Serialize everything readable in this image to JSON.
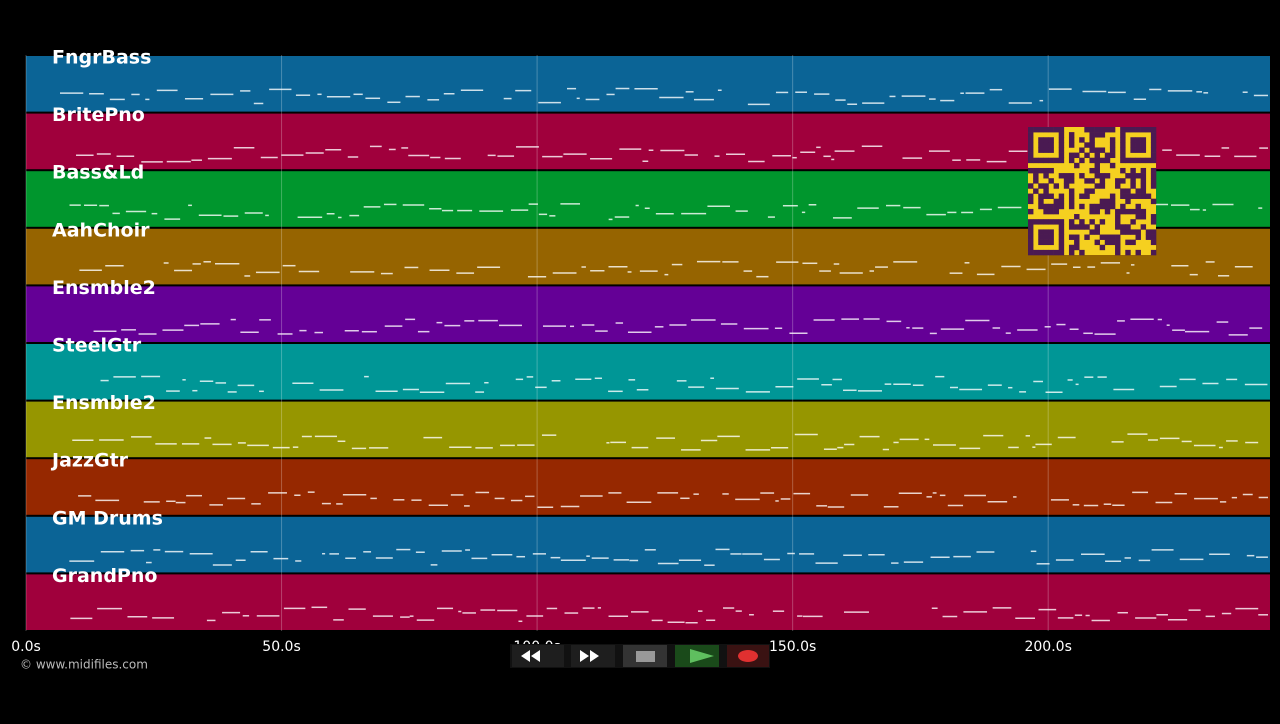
{
  "tracks": [
    {
      "name": "FngrBass",
      "color": "#0b6496"
    },
    {
      "name": "BritePno",
      "color": "#a0003c"
    },
    {
      "name": "Bass&Ld",
      "color": "#00962d"
    },
    {
      "name": "AahChoir",
      "color": "#966400"
    },
    {
      "name": "Ensmble2",
      "color": "#640096"
    },
    {
      "name": "SteelGtr",
      "color": "#009696"
    },
    {
      "name": "Ensmble2",
      "color": "#969600"
    },
    {
      "name": "JazzGtr",
      "color": "#962800"
    },
    {
      "name": "GM Drums",
      "color": "#0b6496"
    },
    {
      "name": "GrandPno",
      "color": "#a0003c"
    }
  ],
  "timeline": {
    "xlim": [
      0,
      243.4
    ],
    "ticks": [
      {
        "value": 0,
        "label": "0.0s"
      },
      {
        "value": 50,
        "label": "50.0s"
      },
      {
        "value": 100,
        "label": "100.0s"
      },
      {
        "value": 150,
        "label": "150.0s"
      },
      {
        "value": 200,
        "label": "200.0s"
      }
    ]
  },
  "credit": "© www.midifiles.com"
}
